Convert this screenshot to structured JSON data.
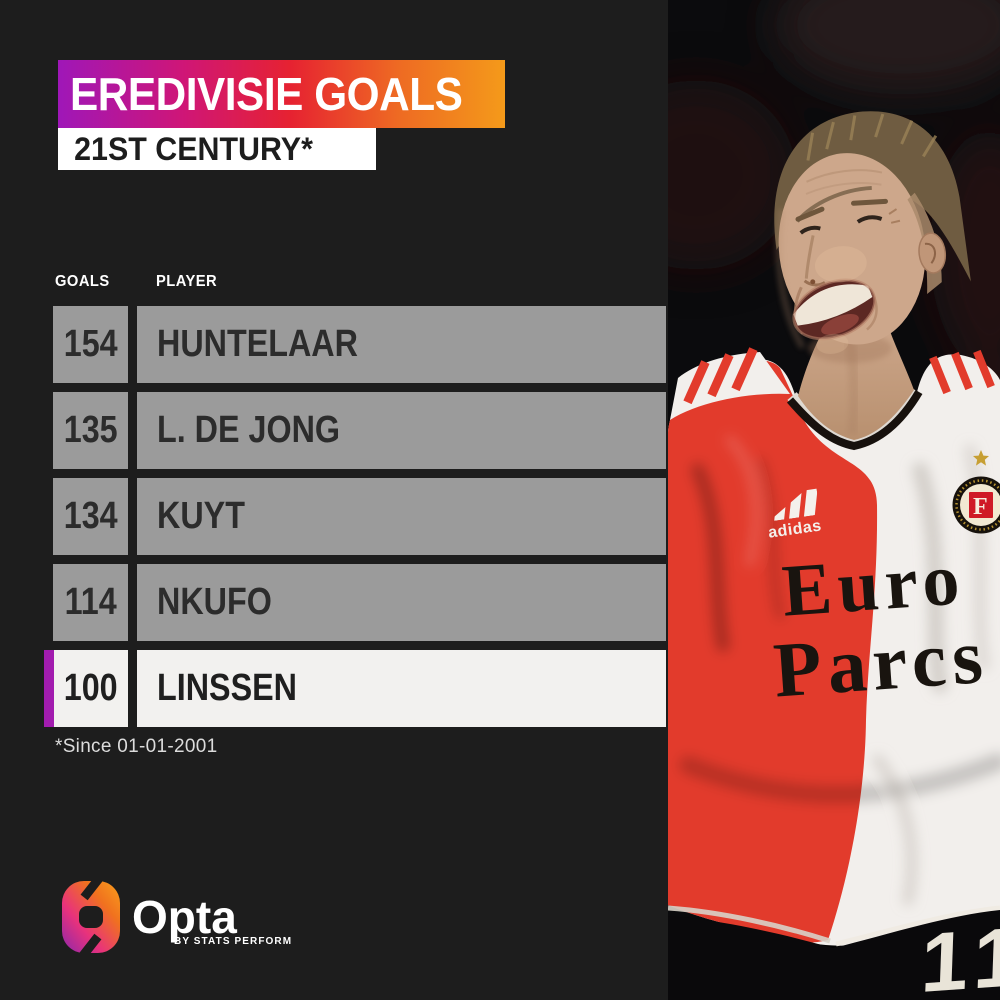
{
  "page": {
    "background": "#1d1d1d"
  },
  "header": {
    "title": "EREDIVISIE GOALS",
    "subtitle": "21ST CENTURY*",
    "gradient": [
      "#9f17b8",
      "#e62231",
      "#f49a1a"
    ]
  },
  "table": {
    "columns": {
      "goals": "GOALS",
      "player": "PLAYER"
    },
    "rows": [
      {
        "goals": "154",
        "player": "HUNTELAAR",
        "highlight": false
      },
      {
        "goals": "135",
        "player": "L. DE JONG",
        "highlight": false
      },
      {
        "goals": "134",
        "player": "KUYT",
        "highlight": false
      },
      {
        "goals": "114",
        "player": "NKUFO",
        "highlight": false
      },
      {
        "goals": "100",
        "player": "LINSSEN",
        "highlight": true
      }
    ],
    "row_color": "#9b9b9b",
    "highlight_color": "#f2f1ef",
    "highlight_accent": "#a21caf"
  },
  "footnote": "*Since 01-01-2001",
  "brand": {
    "name": "Opta",
    "byline": "BY STATS PERFORM"
  },
  "photo": {
    "kit_brand": "adidas",
    "sponsor_line1": "Euro",
    "sponsor_line2": "Parcs",
    "crest_letter": "F",
    "shorts_number": "11"
  },
  "chart_data": {
    "type": "table",
    "title": "EREDIVISIE GOALS",
    "subtitle": "21ST CENTURY*",
    "columns": [
      "GOALS",
      "PLAYER"
    ],
    "rows": [
      [
        154,
        "HUNTELAAR"
      ],
      [
        135,
        "L. DE JONG"
      ],
      [
        134,
        "KUYT"
      ],
      [
        114,
        "NKUFO"
      ],
      [
        100,
        "LINSSEN"
      ]
    ],
    "highlighted_row": "LINSSEN",
    "footnote": "*Since 01-01-2001",
    "source": "Opta"
  }
}
